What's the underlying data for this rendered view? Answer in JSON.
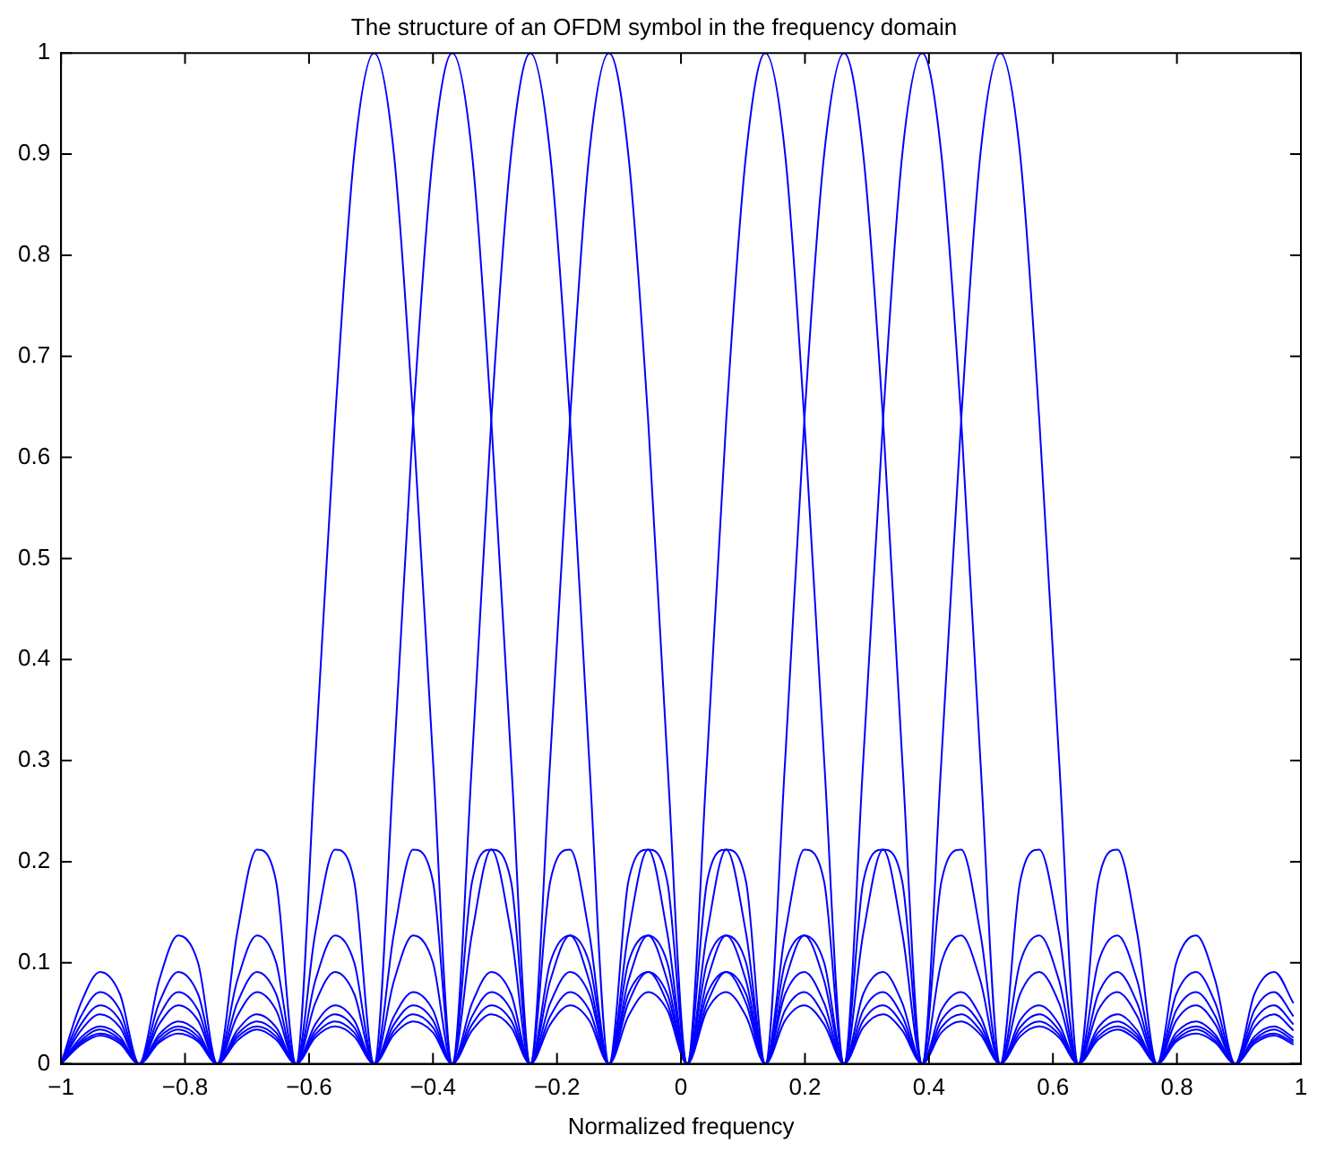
{
  "chart_data": {
    "type": "line",
    "title": "The structure of an OFDM symbol in the frequency domain",
    "xlabel": "Normalized frequency",
    "x": [
      -1,
      -0.968,
      -0.937,
      -0.905,
      -0.874,
      -0.842,
      -0.811,
      -0.779,
      -0.748,
      -0.716,
      -0.684,
      -0.653,
      -0.621,
      -0.59,
      -0.558,
      -0.527,
      -0.495,
      -0.463,
      -0.432,
      -0.4,
      -0.369,
      -0.337,
      -0.306,
      -0.274,
      -0.243,
      -0.211,
      -0.179,
      -0.148,
      -0.116,
      -0.085,
      -0.053,
      -0.022,
      0.01,
      0.042,
      0.073,
      0.105,
      0.136,
      0.168,
      0.199,
      0.231,
      0.263,
      0.294,
      0.326,
      0.357,
      0.389,
      0.42,
      0.452,
      0.483,
      0.515,
      0.547,
      0.578,
      0.61,
      0.641,
      0.673,
      0.704,
      0.736,
      0.768,
      0.799,
      0.831,
      0.862,
      0.894,
      0.925,
      0.957,
      0.988
    ],
    "series": [
      {
        "color": "#0000ff",
        "values": [
          0,
          0.06,
          0.091,
          0.069,
          0,
          0.082,
          0.127,
          0.1,
          0,
          0.129,
          0.212,
          0.18,
          0,
          0.3,
          0.637,
          0.9,
          1,
          0.9,
          0.637,
          0.3,
          0,
          0.18,
          0.212,
          0.129,
          0,
          0.1,
          0.127,
          0.082,
          0,
          0.069,
          0.091,
          0.06,
          0,
          0.053,
          0.071,
          0.047,
          0,
          0.043,
          0.058,
          0.039,
          0,
          0.036,
          0.049,
          0.033,
          0,
          0.031,
          0.042,
          0.029,
          0,
          0.027,
          0.037,
          0.026,
          0,
          0.024,
          0.034,
          0.023,
          0,
          0.022,
          0.03,
          0.021,
          0,
          0.02,
          0.028,
          0.019
        ]
      },
      {
        "color": "#0000ff",
        "values": [
          0,
          0.047,
          0.071,
          0.053,
          0,
          0.06,
          0.091,
          0.069,
          0,
          0.082,
          0.127,
          0.1,
          0,
          0.129,
          0.212,
          0.18,
          0,
          0.3,
          0.637,
          0.9,
          1,
          0.9,
          0.637,
          0.3,
          0,
          0.18,
          0.212,
          0.129,
          0,
          0.1,
          0.127,
          0.082,
          0,
          0.069,
          0.091,
          0.06,
          0,
          0.053,
          0.071,
          0.047,
          0,
          0.043,
          0.058,
          0.039,
          0,
          0.036,
          0.049,
          0.033,
          0,
          0.031,
          0.042,
          0.029,
          0,
          0.027,
          0.037,
          0.026,
          0,
          0.024,
          0.034,
          0.023,
          0,
          0.022,
          0.03,
          0.021
        ]
      },
      {
        "color": "#0000ff",
        "values": [
          0,
          0.039,
          0.058,
          0.043,
          0,
          0.047,
          0.071,
          0.053,
          0,
          0.06,
          0.091,
          0.069,
          0,
          0.082,
          0.127,
          0.1,
          0,
          0.129,
          0.212,
          0.18,
          0,
          0.3,
          0.637,
          0.9,
          1,
          0.9,
          0.637,
          0.3,
          0,
          0.18,
          0.212,
          0.129,
          0,
          0.1,
          0.127,
          0.082,
          0,
          0.069,
          0.091,
          0.06,
          0,
          0.053,
          0.071,
          0.047,
          0,
          0.043,
          0.058,
          0.039,
          0,
          0.036,
          0.049,
          0.033,
          0,
          0.031,
          0.042,
          0.029,
          0,
          0.027,
          0.037,
          0.026,
          0,
          0.024,
          0.034,
          0.023
        ]
      },
      {
        "color": "#0000ff",
        "values": [
          0,
          0.033,
          0.049,
          0.036,
          0,
          0.039,
          0.058,
          0.043,
          0,
          0.047,
          0.071,
          0.053,
          0,
          0.06,
          0.091,
          0.069,
          0,
          0.082,
          0.127,
          0.1,
          0,
          0.129,
          0.212,
          0.18,
          0,
          0.3,
          0.637,
          0.9,
          1,
          0.9,
          0.637,
          0.3,
          0,
          0.18,
          0.212,
          0.129,
          0,
          0.1,
          0.127,
          0.082,
          0,
          0.069,
          0.091,
          0.06,
          0,
          0.053,
          0.071,
          0.047,
          0,
          0.043,
          0.058,
          0.039,
          0,
          0.036,
          0.049,
          0.033,
          0,
          0.031,
          0.042,
          0.029,
          0,
          0.027,
          0.037,
          0.026
        ]
      },
      {
        "color": "#0000ff",
        "values": [
          0,
          0.026,
          0.037,
          0.027,
          0,
          0.029,
          0.042,
          0.031,
          0,
          0.033,
          0.049,
          0.036,
          0,
          0.039,
          0.058,
          0.043,
          0,
          0.047,
          0.071,
          0.053,
          0,
          0.06,
          0.091,
          0.069,
          0,
          0.082,
          0.127,
          0.1,
          0,
          0.129,
          0.212,
          0.18,
          0,
          0.3,
          0.637,
          0.9,
          1,
          0.9,
          0.637,
          0.3,
          0,
          0.18,
          0.212,
          0.129,
          0,
          0.1,
          0.127,
          0.082,
          0,
          0.069,
          0.091,
          0.06,
          0,
          0.053,
          0.071,
          0.047,
          0,
          0.043,
          0.058,
          0.039,
          0,
          0.036,
          0.049,
          0.033
        ]
      },
      {
        "color": "#0000ff",
        "values": [
          0,
          0.023,
          0.034,
          0.024,
          0,
          0.026,
          0.037,
          0.027,
          0,
          0.029,
          0.042,
          0.031,
          0,
          0.033,
          0.049,
          0.036,
          0,
          0.039,
          0.058,
          0.043,
          0,
          0.047,
          0.071,
          0.053,
          0,
          0.06,
          0.091,
          0.069,
          0,
          0.082,
          0.127,
          0.1,
          0,
          0.129,
          0.212,
          0.18,
          0,
          0.3,
          0.637,
          0.9,
          1,
          0.9,
          0.637,
          0.3,
          0,
          0.18,
          0.212,
          0.129,
          0,
          0.1,
          0.127,
          0.082,
          0,
          0.069,
          0.091,
          0.06,
          0,
          0.053,
          0.071,
          0.047,
          0,
          0.043,
          0.058,
          0.039
        ]
      },
      {
        "color": "#0000ff",
        "values": [
          0,
          0.021,
          0.03,
          0.022,
          0,
          0.023,
          0.034,
          0.024,
          0,
          0.026,
          0.037,
          0.027,
          0,
          0.029,
          0.042,
          0.031,
          0,
          0.033,
          0.049,
          0.036,
          0,
          0.039,
          0.058,
          0.043,
          0,
          0.047,
          0.071,
          0.053,
          0,
          0.06,
          0.091,
          0.069,
          0,
          0.082,
          0.127,
          0.1,
          0,
          0.129,
          0.212,
          0.18,
          0,
          0.3,
          0.637,
          0.9,
          1,
          0.9,
          0.637,
          0.3,
          0,
          0.18,
          0.212,
          0.129,
          0,
          0.1,
          0.127,
          0.082,
          0,
          0.069,
          0.091,
          0.06,
          0,
          0.053,
          0.071,
          0.047
        ]
      },
      {
        "color": "#0000ff",
        "values": [
          0,
          0.019,
          0.028,
          0.02,
          0,
          0.021,
          0.03,
          0.022,
          0,
          0.023,
          0.034,
          0.024,
          0,
          0.026,
          0.037,
          0.027,
          0,
          0.029,
          0.042,
          0.031,
          0,
          0.033,
          0.049,
          0.036,
          0,
          0.039,
          0.058,
          0.043,
          0,
          0.047,
          0.071,
          0.053,
          0,
          0.06,
          0.091,
          0.069,
          0,
          0.082,
          0.127,
          0.1,
          0,
          0.129,
          0.212,
          0.18,
          0,
          0.3,
          0.637,
          0.9,
          1,
          0.9,
          0.637,
          0.3,
          0,
          0.18,
          0.212,
          0.129,
          0,
          0.1,
          0.127,
          0.082,
          0,
          0.069,
          0.091,
          0.06
        ]
      }
    ],
    "xlim": [
      -1,
      1
    ],
    "xticks": [
      {
        "value": -1,
        "label": "−1"
      },
      {
        "value": -0.8,
        "label": "−0.8"
      },
      {
        "value": -0.6,
        "label": "−0.6"
      },
      {
        "value": -0.4,
        "label": "−0.4"
      },
      {
        "value": -0.2,
        "label": "−0.2"
      },
      0,
      0.2,
      0.4,
      0.6,
      0.8,
      1
    ],
    "ylim": [
      0,
      1
    ],
    "yticks": [
      0,
      0.1,
      0.2,
      0.3,
      0.4,
      0.5,
      0.6,
      0.7,
      0.8,
      0.9,
      1
    ],
    "grid": false,
    "legend": false,
    "marker": "none",
    "line_style": "solid"
  }
}
